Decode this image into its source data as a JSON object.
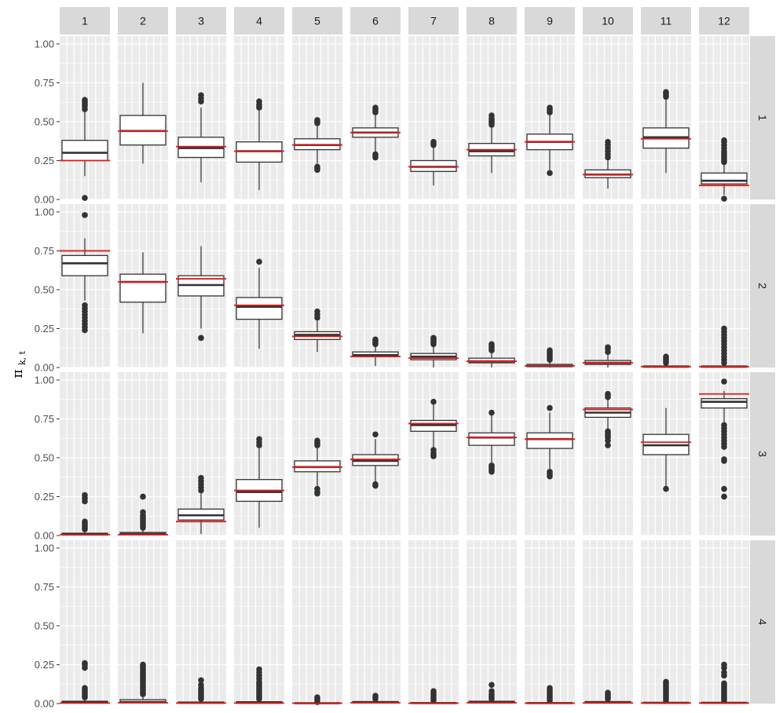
{
  "chart_data": {
    "type": "boxplot",
    "ylabel_symbol": "π",
    "ylabel_subscript": "k, t",
    "ylim": [
      0,
      1.05
    ],
    "yticks": [
      0,
      0.25,
      0.5,
      0.75,
      1.0
    ],
    "ytick_labels": [
      "0.00",
      "0.25",
      "0.50",
      "0.75",
      "1.00"
    ],
    "col_labels": [
      "1",
      "2",
      "3",
      "4",
      "5",
      "6",
      "7",
      "8",
      "9",
      "10",
      "11",
      "12"
    ],
    "row_labels": [
      "1",
      "2",
      "3",
      "4"
    ],
    "colors": {
      "panel": "#ebebeb",
      "strip": "#d9d9d9",
      "box": "#333333",
      "reference": "#e41a1c"
    },
    "rows": [
      {
        "row": "1",
        "boxes": [
          {
            "col": "1",
            "lo": 0.15,
            "q1": 0.25,
            "med": 0.3,
            "q3": 0.38,
            "hi": 0.57,
            "ref": 0.25,
            "out": [
              0.01,
              0.58,
              0.6,
              0.61,
              0.62,
              0.63,
              0.64
            ]
          },
          {
            "col": "2",
            "lo": 0.23,
            "q1": 0.35,
            "med": 0.44,
            "q3": 0.54,
            "hi": 0.75,
            "ref": 0.44,
            "out": []
          },
          {
            "col": "3",
            "lo": 0.11,
            "q1": 0.27,
            "med": 0.33,
            "q3": 0.4,
            "hi": 0.59,
            "ref": 0.34,
            "out": [
              0.63,
              0.65,
              0.67
            ]
          },
          {
            "col": "4",
            "lo": 0.06,
            "q1": 0.24,
            "med": 0.31,
            "q3": 0.37,
            "hi": 0.57,
            "ref": 0.31,
            "out": [
              0.59,
              0.6,
              0.61,
              0.63
            ]
          },
          {
            "col": "5",
            "lo": 0.22,
            "q1": 0.32,
            "med": 0.35,
            "q3": 0.39,
            "hi": 0.47,
            "ref": 0.35,
            "out": [
              0.19,
              0.2,
              0.21,
              0.49,
              0.5,
              0.51
            ]
          },
          {
            "col": "6",
            "lo": 0.3,
            "q1": 0.4,
            "med": 0.43,
            "q3": 0.46,
            "hi": 0.54,
            "ref": 0.43,
            "out": [
              0.27,
              0.28,
              0.29,
              0.56,
              0.57,
              0.58,
              0.59
            ]
          },
          {
            "col": "7",
            "lo": 0.09,
            "q1": 0.18,
            "med": 0.21,
            "q3": 0.25,
            "hi": 0.34,
            "ref": 0.21,
            "out": [
              0.35,
              0.36,
              0.37
            ]
          },
          {
            "col": "8",
            "lo": 0.17,
            "q1": 0.28,
            "med": 0.31,
            "q3": 0.36,
            "hi": 0.47,
            "ref": 0.32,
            "out": [
              0.48,
              0.49,
              0.5,
              0.51,
              0.52,
              0.54
            ]
          },
          {
            "col": "9",
            "lo": 0.19,
            "q1": 0.32,
            "med": 0.37,
            "q3": 0.42,
            "hi": 0.55,
            "ref": 0.37,
            "out": [
              0.17,
              0.56,
              0.57,
              0.58,
              0.59
            ]
          },
          {
            "col": "10",
            "lo": 0.07,
            "q1": 0.14,
            "med": 0.16,
            "q3": 0.19,
            "hi": 0.25,
            "ref": 0.16,
            "out": [
              0.27,
              0.29,
              0.31,
              0.33,
              0.35,
              0.37
            ]
          },
          {
            "col": "11",
            "lo": 0.17,
            "q1": 0.33,
            "med": 0.4,
            "q3": 0.46,
            "hi": 0.64,
            "ref": 0.39,
            "out": [
              0.66,
              0.67,
              0.68,
              0.69
            ]
          },
          {
            "col": "12",
            "lo": 0.03,
            "q1": 0.1,
            "med": 0.12,
            "q3": 0.17,
            "hi": 0.23,
            "ref": 0.09,
            "out": [
              0.005,
              0.24,
              0.25,
              0.26,
              0.27,
              0.28,
              0.29,
              0.3,
              0.31,
              0.33,
              0.35,
              0.37,
              0.38
            ]
          }
        ]
      },
      {
        "row": "2",
        "boxes": [
          {
            "col": "1",
            "lo": 0.43,
            "q1": 0.59,
            "med": 0.67,
            "q3": 0.72,
            "hi": 0.83,
            "ref": 0.75,
            "out": [
              0.24,
              0.26,
              0.28,
              0.3,
              0.32,
              0.34,
              0.36,
              0.38,
              0.4,
              0.98
            ]
          },
          {
            "col": "2",
            "lo": 0.22,
            "q1": 0.42,
            "med": 0.55,
            "q3": 0.6,
            "hi": 0.74,
            "ref": 0.55,
            "out": []
          },
          {
            "col": "3",
            "lo": 0.25,
            "q1": 0.46,
            "med": 0.53,
            "q3": 0.59,
            "hi": 0.78,
            "ref": 0.57,
            "out": [
              0.19
            ]
          },
          {
            "col": "4",
            "lo": 0.12,
            "q1": 0.31,
            "med": 0.39,
            "q3": 0.45,
            "hi": 0.64,
            "ref": 0.4,
            "out": [
              0.68
            ]
          },
          {
            "col": "5",
            "lo": 0.1,
            "q1": 0.18,
            "med": 0.21,
            "q3": 0.23,
            "hi": 0.3,
            "ref": 0.2,
            "out": [
              0.32,
              0.34,
              0.36
            ]
          },
          {
            "col": "6",
            "lo": 0.01,
            "q1": 0.07,
            "med": 0.08,
            "q3": 0.1,
            "hi": 0.14,
            "ref": 0.07,
            "out": [
              0.15,
              0.16,
              0.17,
              0.18
            ]
          },
          {
            "col": "7",
            "lo": 0.0,
            "q1": 0.05,
            "med": 0.07,
            "q3": 0.09,
            "hi": 0.14,
            "ref": 0.06,
            "out": [
              0.15,
              0.16,
              0.17,
              0.18,
              0.19
            ]
          },
          {
            "col": "8",
            "lo": 0.0,
            "q1": 0.03,
            "med": 0.04,
            "q3": 0.06,
            "hi": 0.1,
            "ref": 0.04,
            "out": [
              0.11,
              0.12,
              0.13,
              0.14,
              0.15
            ]
          },
          {
            "col": "9",
            "lo": 0.0,
            "q1": 0.005,
            "med": 0.01,
            "q3": 0.02,
            "hi": 0.04,
            "ref": 0.01,
            "out": [
              0.05,
              0.06,
              0.07,
              0.08,
              0.09,
              0.1,
              0.11
            ]
          },
          {
            "col": "10",
            "lo": 0.0,
            "q1": 0.02,
            "med": 0.03,
            "q3": 0.045,
            "hi": 0.08,
            "ref": 0.03,
            "out": [
              0.1,
              0.12,
              0.13
            ]
          },
          {
            "col": "11",
            "lo": 0.0,
            "q1": 0.002,
            "med": 0.005,
            "q3": 0.01,
            "hi": 0.02,
            "ref": 0.005,
            "out": [
              0.03,
              0.04,
              0.05,
              0.06,
              0.07
            ]
          },
          {
            "col": "12",
            "lo": 0.0,
            "q1": 0.002,
            "med": 0.005,
            "q3": 0.01,
            "hi": 0.02,
            "ref": 0.005,
            "out": [
              0.03,
              0.05,
              0.07,
              0.09,
              0.11,
              0.13,
              0.15,
              0.17,
              0.19,
              0.21,
              0.23,
              0.25
            ]
          }
        ]
      },
      {
        "row": "3",
        "boxes": [
          {
            "col": "1",
            "lo": 0.0,
            "q1": 0.003,
            "med": 0.008,
            "q3": 0.015,
            "hi": 0.03,
            "ref": 0.005,
            "out": [
              0.04,
              0.05,
              0.06,
              0.07,
              0.08,
              0.09,
              0.22,
              0.24,
              0.26
            ]
          },
          {
            "col": "2",
            "lo": 0.0,
            "q1": 0.005,
            "med": 0.01,
            "q3": 0.02,
            "hi": 0.04,
            "ref": 0.005,
            "out": [
              0.05,
              0.06,
              0.07,
              0.08,
              0.09,
              0.1,
              0.11,
              0.12,
              0.13,
              0.15,
              0.25
            ]
          },
          {
            "col": "3",
            "lo": 0.01,
            "q1": 0.1,
            "med": 0.13,
            "q3": 0.17,
            "hi": 0.27,
            "ref": 0.09,
            "out": [
              0.29,
              0.31,
              0.33,
              0.35,
              0.37
            ]
          },
          {
            "col": "4",
            "lo": 0.05,
            "q1": 0.22,
            "med": 0.28,
            "q3": 0.36,
            "hi": 0.56,
            "ref": 0.29,
            "out": [
              0.58,
              0.6,
              0.62
            ]
          },
          {
            "col": "5",
            "lo": 0.32,
            "q1": 0.41,
            "med": 0.44,
            "q3": 0.48,
            "hi": 0.57,
            "ref": 0.44,
            "out": [
              0.27,
              0.28,
              0.3,
              0.58,
              0.59,
              0.6,
              0.61
            ]
          },
          {
            "col": "6",
            "lo": 0.34,
            "q1": 0.45,
            "med": 0.48,
            "q3": 0.52,
            "hi": 0.62,
            "ref": 0.49,
            "out": [
              0.32,
              0.33,
              0.65
            ]
          },
          {
            "col": "7",
            "lo": 0.56,
            "q1": 0.67,
            "med": 0.71,
            "q3": 0.74,
            "hi": 0.84,
            "ref": 0.72,
            "out": [
              0.51,
              0.52,
              0.53,
              0.55,
              0.86
            ]
          },
          {
            "col": "8",
            "lo": 0.46,
            "q1": 0.58,
            "med": 0.63,
            "q3": 0.66,
            "hi": 0.78,
            "ref": 0.63,
            "out": [
              0.41,
              0.42,
              0.43,
              0.44,
              0.45,
              0.79
            ]
          },
          {
            "col": "9",
            "lo": 0.43,
            "q1": 0.56,
            "med": 0.62,
            "q3": 0.66,
            "hi": 0.79,
            "ref": 0.62,
            "out": [
              0.38,
              0.39,
              0.4,
              0.41,
              0.82
            ]
          },
          {
            "col": "10",
            "lo": 0.68,
            "q1": 0.76,
            "med": 0.79,
            "q3": 0.82,
            "hi": 0.88,
            "ref": 0.81,
            "out": [
              0.58,
              0.61,
              0.63,
              0.64,
              0.65,
              0.66,
              0.67,
              0.89,
              0.9,
              0.91
            ]
          },
          {
            "col": "11",
            "lo": 0.3,
            "q1": 0.52,
            "med": 0.58,
            "q3": 0.65,
            "hi": 0.82,
            "ref": 0.6,
            "out": [
              0.3
            ]
          },
          {
            "col": "12",
            "lo": 0.73,
            "q1": 0.82,
            "med": 0.86,
            "q3": 0.88,
            "hi": 0.93,
            "ref": 0.91,
            "out": [
              0.25,
              0.3,
              0.48,
              0.49,
              0.57,
              0.59,
              0.61,
              0.63,
              0.65,
              0.67,
              0.69,
              0.71,
              0.99
            ]
          }
        ]
      },
      {
        "row": "4",
        "boxes": [
          {
            "col": "1",
            "lo": 0.0,
            "q1": 0.003,
            "med": 0.008,
            "q3": 0.015,
            "hi": 0.03,
            "ref": 0.003,
            "out": [
              0.04,
              0.05,
              0.06,
              0.07,
              0.08,
              0.09,
              0.1,
              0.23,
              0.25,
              0.26
            ]
          },
          {
            "col": "2",
            "lo": 0.0,
            "q1": 0.005,
            "med": 0.01,
            "q3": 0.025,
            "hi": 0.05,
            "ref": 0.005,
            "out": [
              0.06,
              0.07,
              0.08,
              0.09,
              0.1,
              0.11,
              0.12,
              0.13,
              0.14,
              0.15,
              0.16,
              0.17,
              0.18,
              0.19,
              0.2,
              0.21,
              0.22,
              0.23,
              0.24,
              0.25
            ]
          },
          {
            "col": "3",
            "lo": 0.0,
            "q1": 0.002,
            "med": 0.005,
            "q3": 0.01,
            "hi": 0.02,
            "ref": 0.003,
            "out": [
              0.03,
              0.04,
              0.05,
              0.06,
              0.07,
              0.08,
              0.09,
              0.1,
              0.12,
              0.15
            ]
          },
          {
            "col": "4",
            "lo": 0.0,
            "q1": 0.002,
            "med": 0.005,
            "q3": 0.012,
            "hi": 0.025,
            "ref": 0.003,
            "out": [
              0.03,
              0.04,
              0.05,
              0.06,
              0.07,
              0.08,
              0.09,
              0.1,
              0.11,
              0.12,
              0.13,
              0.14,
              0.16,
              0.18,
              0.2,
              0.22
            ]
          },
          {
            "col": "5",
            "lo": 0.0,
            "q1": 0.001,
            "med": 0.002,
            "q3": 0.004,
            "hi": 0.008,
            "ref": 0.002,
            "out": [
              0.01,
              0.02,
              0.03,
              0.04
            ]
          },
          {
            "col": "6",
            "lo": 0.0,
            "q1": 0.004,
            "med": 0.008,
            "q3": 0.013,
            "hi": 0.02,
            "ref": 0.005,
            "out": [
              0.03,
              0.04,
              0.05
            ]
          },
          {
            "col": "7",
            "lo": 0.0,
            "q1": 0.001,
            "med": 0.003,
            "q3": 0.006,
            "hi": 0.012,
            "ref": 0.002,
            "out": [
              0.02,
              0.03,
              0.04,
              0.05,
              0.06,
              0.07,
              0.08
            ]
          },
          {
            "col": "8",
            "lo": 0.0,
            "q1": 0.004,
            "med": 0.008,
            "q3": 0.015,
            "hi": 0.025,
            "ref": 0.005,
            "out": [
              0.03,
              0.04,
              0.05,
              0.06,
              0.08,
              0.12
            ]
          },
          {
            "col": "9",
            "lo": 0.0,
            "q1": 0.001,
            "med": 0.003,
            "q3": 0.006,
            "hi": 0.012,
            "ref": 0.002,
            "out": [
              0.02,
              0.03,
              0.04,
              0.05,
              0.06,
              0.07,
              0.08,
              0.09,
              0.1
            ]
          },
          {
            "col": "10",
            "lo": 0.0,
            "q1": 0.003,
            "med": 0.007,
            "q3": 0.013,
            "hi": 0.02,
            "ref": 0.004,
            "out": [
              0.03,
              0.04,
              0.05,
              0.06,
              0.07
            ]
          },
          {
            "col": "11",
            "lo": 0.0,
            "q1": 0.002,
            "med": 0.004,
            "q3": 0.008,
            "hi": 0.015,
            "ref": 0.003,
            "out": [
              0.02,
              0.03,
              0.04,
              0.05,
              0.06,
              0.07,
              0.08,
              0.09,
              0.1,
              0.11,
              0.12,
              0.13,
              0.14
            ]
          },
          {
            "col": "12",
            "lo": 0.0,
            "q1": 0.002,
            "med": 0.004,
            "q3": 0.008,
            "hi": 0.015,
            "ref": 0.003,
            "out": [
              0.02,
              0.03,
              0.04,
              0.05,
              0.06,
              0.07,
              0.08,
              0.09,
              0.1,
              0.11,
              0.12,
              0.13,
              0.18,
              0.2,
              0.23,
              0.25
            ]
          }
        ]
      }
    ]
  }
}
